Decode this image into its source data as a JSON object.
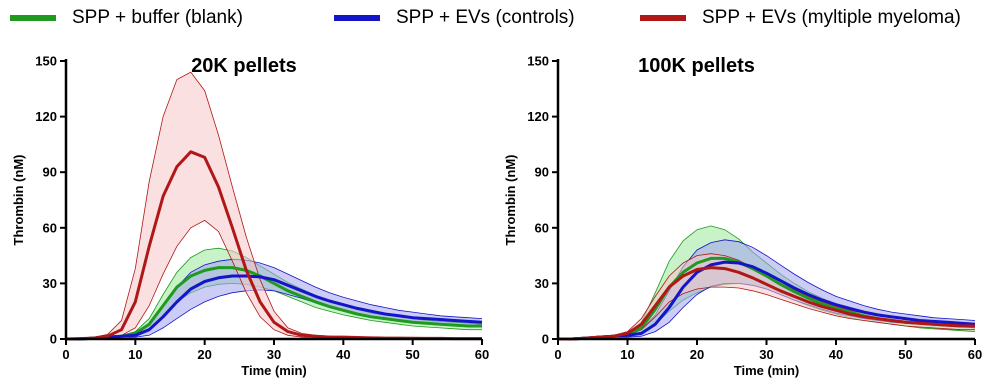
{
  "legend": [
    {
      "name": "SPP + buffer (blank)",
      "color": "#1f9a1f"
    },
    {
      "name": "SPP + EVs (controls)",
      "color": "#1414c8"
    },
    {
      "name": "SPP + EVs (myltiple myeloma)",
      "color": "#b01818"
    }
  ],
  "chart_data": [
    {
      "type": "line",
      "title": "20K pellets",
      "xlabel": "Time (min)",
      "ylabel": "Thrombin (nM)",
      "xlim": [
        0,
        60
      ],
      "ylim": [
        0,
        150
      ],
      "xticks": [
        0,
        10,
        20,
        30,
        40,
        50,
        60
      ],
      "yticks": [
        0,
        30,
        60,
        90,
        120,
        150
      ],
      "x": [
        0,
        2,
        4,
        6,
        8,
        10,
        12,
        14,
        16,
        18,
        20,
        22,
        24,
        26,
        28,
        30,
        32,
        34,
        36,
        38,
        40,
        42,
        44,
        46,
        48,
        50,
        52,
        54,
        56,
        58,
        60
      ],
      "series": [
        {
          "name": "SPP + buffer (blank)",
          "color": "#1f9a1f",
          "fill": "#9be89b",
          "mean": [
            0,
            0,
            0.5,
            1,
            1.5,
            3,
            8,
            18,
            28,
            34,
            37,
            38.5,
            38.5,
            37,
            34,
            30,
            26,
            23,
            20,
            17.5,
            15.5,
            13.5,
            12,
            11,
            10,
            9,
            8.5,
            8,
            7.5,
            7,
            7
          ],
          "upper": [
            0,
            0,
            0.8,
            1.5,
            2,
            4,
            11,
            24,
            36,
            44,
            48,
            49,
            47.5,
            44,
            39.5,
            35,
            30.5,
            27,
            23.5,
            20.5,
            18,
            16,
            14,
            13,
            12,
            11,
            10,
            9.5,
            9,
            8.5,
            8
          ],
          "lower": [
            0,
            0,
            0.2,
            0.5,
            1,
            2,
            5,
            12,
            20,
            25,
            28,
            29.5,
            30,
            29.5,
            28,
            26,
            23,
            20,
            17,
            15,
            13,
            11.5,
            10,
            9,
            8,
            7,
            6.5,
            6,
            5.5,
            5,
            5
          ]
        },
        {
          "name": "SPP + EVs (controls)",
          "color": "#1414c8",
          "fill": "#a3a3f0",
          "mean": [
            0,
            0,
            0.5,
            1,
            1.5,
            2,
            5,
            12,
            20,
            27,
            31,
            33,
            34,
            34,
            33.5,
            32,
            29,
            26,
            23,
            20.5,
            18.5,
            16.5,
            15,
            13.5,
            12.5,
            11.5,
            11,
            10.5,
            10,
            9.5,
            9
          ],
          "upper": [
            0,
            0,
            0.8,
            1.5,
            2,
            3,
            8,
            18,
            28,
            36,
            40,
            42,
            43,
            42.5,
            41,
            38.5,
            35,
            31.5,
            28,
            25,
            22.5,
            20.5,
            18.5,
            17,
            15.5,
            14.5,
            13.5,
            12.5,
            12,
            11.5,
            11
          ],
          "lower": [
            0,
            0,
            0.2,
            0.5,
            1,
            1,
            2,
            6,
            11,
            16,
            20,
            23,
            25,
            26,
            26.5,
            26,
            24,
            22,
            19.5,
            17,
            15,
            13.5,
            12,
            11,
            10,
            9,
            8.5,
            8,
            7.5,
            7,
            7
          ]
        },
        {
          "name": "SPP + EVs (myltiple myeloma)",
          "color": "#b01818",
          "fill": "#f6c6c6",
          "mean": [
            0,
            0.2,
            0.5,
            1.5,
            5,
            20,
            50,
            77,
            93,
            101,
            98,
            82,
            60,
            37,
            20,
            9,
            4,
            2,
            1.5,
            1,
            1,
            0.8,
            0.6,
            0.5,
            0.5,
            0.4,
            0.3,
            0.3,
            0.2,
            0.2,
            0.2
          ],
          "upper": [
            0,
            0.4,
            1,
            2.5,
            10,
            38,
            85,
            120,
            140,
            144,
            134,
            110,
            82,
            55,
            32,
            15,
            6,
            3,
            2,
            1.5,
            1.2,
            1,
            0.8,
            0.7,
            0.6,
            0.5,
            0.4,
            0.4,
            0.3,
            0.3,
            0.3
          ],
          "lower": [
            0,
            0,
            0.2,
            0.5,
            2,
            6,
            18,
            35,
            50,
            60,
            64,
            58,
            42,
            25,
            12,
            5,
            2,
            1,
            0.8,
            0.5,
            0.5,
            0.4,
            0.3,
            0.3,
            0.2,
            0.2,
            0.1,
            0.1,
            0.1,
            0.1,
            0.1
          ]
        }
      ]
    },
    {
      "type": "line",
      "title": "100K pellets",
      "xlabel": "Time (min)",
      "ylabel": "Thrombin (nM)",
      "xlim": [
        0,
        60
      ],
      "ylim": [
        0,
        150
      ],
      "xticks": [
        0,
        10,
        20,
        30,
        40,
        50,
        60
      ],
      "yticks": [
        0,
        30,
        60,
        90,
        120,
        150
      ],
      "x": [
        0,
        2,
        4,
        6,
        8,
        10,
        12,
        14,
        16,
        18,
        20,
        22,
        24,
        26,
        28,
        30,
        32,
        34,
        36,
        38,
        40,
        42,
        44,
        46,
        48,
        50,
        52,
        54,
        56,
        58,
        60
      ],
      "series": [
        {
          "name": "SPP + buffer (blank)",
          "color": "#1f9a1f",
          "fill": "#9be89b",
          "mean": [
            0,
            0,
            0.5,
            1,
            1.5,
            2,
            6,
            16,
            28,
            36,
            41,
            43.5,
            43.5,
            41.5,
            38,
            34,
            29.5,
            25.5,
            22,
            19,
            16.5,
            14.5,
            12.5,
            11,
            10,
            9,
            8.5,
            8,
            7.5,
            7,
            7
          ],
          "upper": [
            0,
            0,
            0.8,
            1.5,
            2,
            3,
            9,
            25,
            42,
            53,
            59,
            61,
            59,
            54,
            47,
            41,
            35,
            30,
            25.5,
            22,
            19,
            16.5,
            14.5,
            13,
            11.5,
            10.5,
            9.5,
            9,
            8.5,
            8,
            8
          ],
          "lower": [
            0,
            0,
            0.2,
            0.5,
            1,
            1,
            3,
            8,
            15,
            21,
            25,
            28,
            29.5,
            30,
            29,
            27,
            24,
            21,
            18,
            15.5,
            13.5,
            11.5,
            10,
            9,
            8,
            7,
            6,
            5.5,
            5,
            4.5,
            4
          ]
        },
        {
          "name": "SPP + EVs (controls)",
          "color": "#1414c8",
          "fill": "#a3a3f0",
          "mean": [
            0,
            0,
            0.5,
            1,
            1.5,
            2,
            3,
            8,
            17,
            28,
            36,
            40,
            41.5,
            41,
            39,
            35.5,
            31.5,
            27.5,
            24,
            21,
            18.5,
            16.5,
            14.5,
            13,
            12,
            11,
            10,
            9.5,
            9,
            8.5,
            8
          ],
          "upper": [
            0,
            0,
            0.8,
            1.5,
            2,
            3,
            5,
            13,
            26,
            39,
            48,
            52,
            53.5,
            52.5,
            49.5,
            45,
            40,
            35,
            30.5,
            26.5,
            23,
            20.5,
            18,
            16,
            14.5,
            13.5,
            12.5,
            11.5,
            11,
            10.5,
            10
          ],
          "lower": [
            0,
            0,
            0.2,
            0.5,
            1,
            1,
            1.5,
            4,
            9,
            17,
            24,
            28.5,
            30,
            30,
            29,
            27,
            24,
            21,
            18.5,
            16,
            14,
            12.5,
            11,
            10,
            9,
            8.5,
            8,
            7.5,
            7,
            6.5,
            6
          ]
        },
        {
          "name": "SPP + EVs (myltiple myeloma)",
          "color": "#b01818",
          "fill": "#f6c6c6",
          "mean": [
            0,
            0,
            0.5,
            1,
            1.5,
            3,
            8,
            18,
            28,
            34,
            37.5,
            38.5,
            38,
            36,
            33,
            29.5,
            26,
            23,
            20,
            17.5,
            15.5,
            13.5,
            12,
            11,
            10,
            9,
            8.5,
            8,
            7.5,
            7,
            7
          ],
          "upper": [
            0,
            0,
            0.8,
            1.5,
            2,
            4,
            11,
            23,
            34,
            41,
            45,
            46,
            45,
            42.5,
            38.5,
            34.5,
            30,
            26.5,
            23,
            20,
            17.5,
            15.5,
            14,
            12.5,
            11.5,
            10.5,
            9.5,
            9,
            8.5,
            8,
            8
          ],
          "lower": [
            0,
            0,
            0.2,
            0.5,
            1,
            2,
            5,
            12,
            20,
            24.5,
            27,
            28,
            28,
            27.5,
            26,
            24,
            21.5,
            19,
            16.5,
            14.5,
            12.5,
            11,
            10,
            9,
            8,
            7,
            6.5,
            6,
            5.5,
            5,
            5
          ]
        }
      ]
    }
  ]
}
